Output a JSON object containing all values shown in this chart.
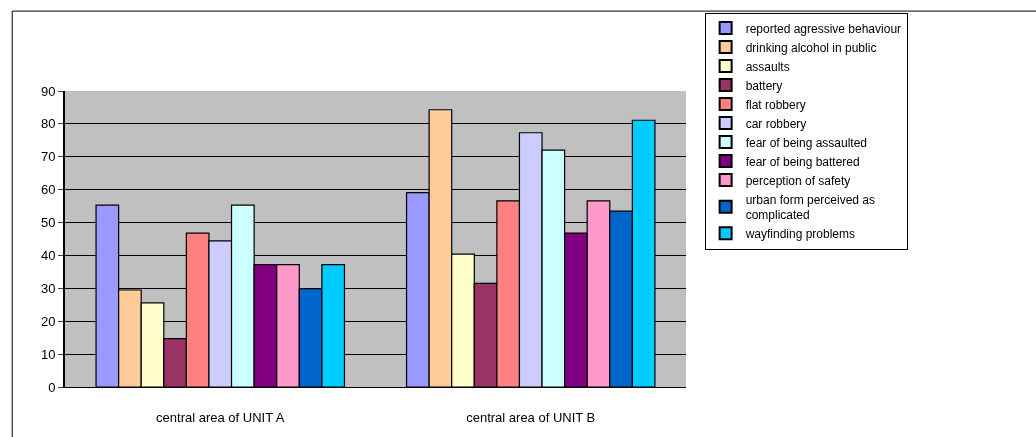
{
  "chart_data": {
    "type": "bar",
    "categories": [
      "central area of UNIT A",
      "central area of UNIT B"
    ],
    "series": [
      {
        "name": "reported agressive behaviour",
        "color": "#9999ff",
        "values": [
          55.3,
          59.1
        ]
      },
      {
        "name": "drinking alcohol in public",
        "color": "#ffcc99",
        "values": [
          29.5,
          84.3
        ]
      },
      {
        "name": "assaults",
        "color": "#ffffcc",
        "values": [
          25.6,
          40.4
        ]
      },
      {
        "name": "battery",
        "color": "#993366",
        "values": [
          14.7,
          31.5
        ]
      },
      {
        "name": "flat robbery",
        "color": "#ff8080",
        "values": [
          46.8,
          56.6
        ]
      },
      {
        "name": "car robbery",
        "color": "#ccccff",
        "values": [
          44.4,
          77.3
        ]
      },
      {
        "name": "fear of being assaulted",
        "color": "#ccffff",
        "values": [
          55.3,
          72.0
        ]
      },
      {
        "name": "fear of being battered",
        "color": "#800080",
        "values": [
          37.2,
          46.8
        ]
      },
      {
        "name": "perception of safety",
        "color": "#ff99cc",
        "values": [
          37.2,
          56.6
        ]
      },
      {
        "name": "urban form perceived as complicated",
        "color": "#0066cc",
        "values": [
          29.9,
          53.5
        ]
      },
      {
        "name": "wayfinding problems",
        "color": "#00ccff",
        "values": [
          37.2,
          81.1
        ]
      }
    ],
    "ylim": [
      0,
      90
    ],
    "yticks": [
      0,
      10,
      20,
      30,
      40,
      50,
      60,
      70,
      80,
      90
    ],
    "grid": "y",
    "legend": "right"
  }
}
